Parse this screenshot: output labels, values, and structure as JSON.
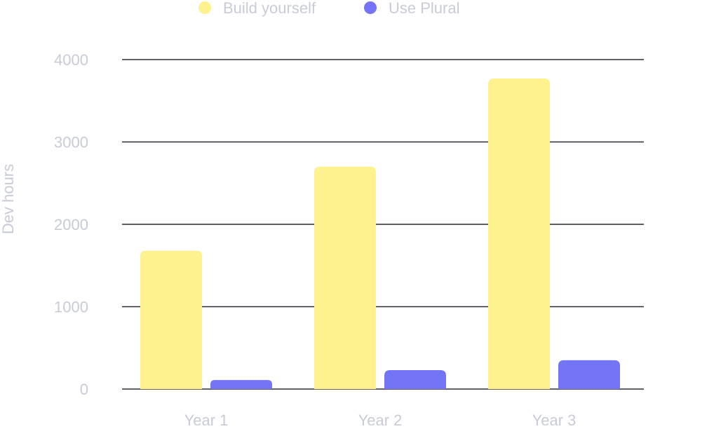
{
  "chart_data": {
    "type": "bar",
    "categories": [
      "Year 1",
      "Year 2",
      "Year 3"
    ],
    "series": [
      {
        "name": "Build yourself",
        "values": [
          1680,
          2700,
          3770
        ],
        "color": "#fef28f"
      },
      {
        "name": "Use Plural",
        "values": [
          110,
          230,
          350
        ],
        "color": "#7474f6"
      }
    ],
    "ylabel": "Dev hours",
    "xlabel": "",
    "ylim": [
      0,
      4000
    ],
    "yticks": [
      0,
      1000,
      2000,
      3000,
      4000
    ],
    "grid": true,
    "legend_position": "top-center"
  }
}
